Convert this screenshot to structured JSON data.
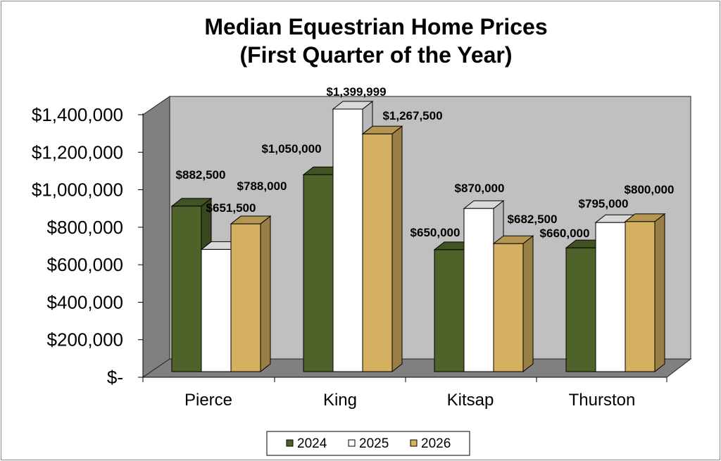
{
  "chart_data": {
    "type": "bar",
    "title": "Median Equestrian Home Prices",
    "subtitle": "(First Quarter of the Year)",
    "categories": [
      "Pierce",
      "King",
      "Kitsap",
      "Thurston"
    ],
    "series": [
      {
        "name": "2024",
        "values": [
          882500,
          1050000,
          650000,
          660000
        ],
        "labels": [
          "$882,500",
          "$1,050,000",
          "$650,000",
          "$660,000"
        ],
        "color": "#4e6229"
      },
      {
        "name": "2025",
        "values": [
          651500,
          1399999,
          870000,
          795000
        ],
        "labels": [
          "$651,500",
          "$1,399,999",
          "$870,000",
          "$795,000"
        ],
        "color": "#ffffff"
      },
      {
        "name": "2026",
        "values": [
          788000,
          1267500,
          682500,
          800000
        ],
        "labels": [
          "$788,000",
          "$1,267,500",
          "$682,500",
          "$800,000"
        ],
        "color": "#d4b060"
      }
    ],
    "yticks": [
      "$-",
      "$200,000",
      "$400,000",
      "$600,000",
      "$800,000",
      "$1,000,000",
      "$1,200,000",
      "$1,400,000"
    ],
    "ylim": [
      0,
      1400000
    ],
    "grid": false,
    "legend_position": "bottom",
    "wall_color": "#c0c0c0",
    "floor_color": "#808080"
  }
}
